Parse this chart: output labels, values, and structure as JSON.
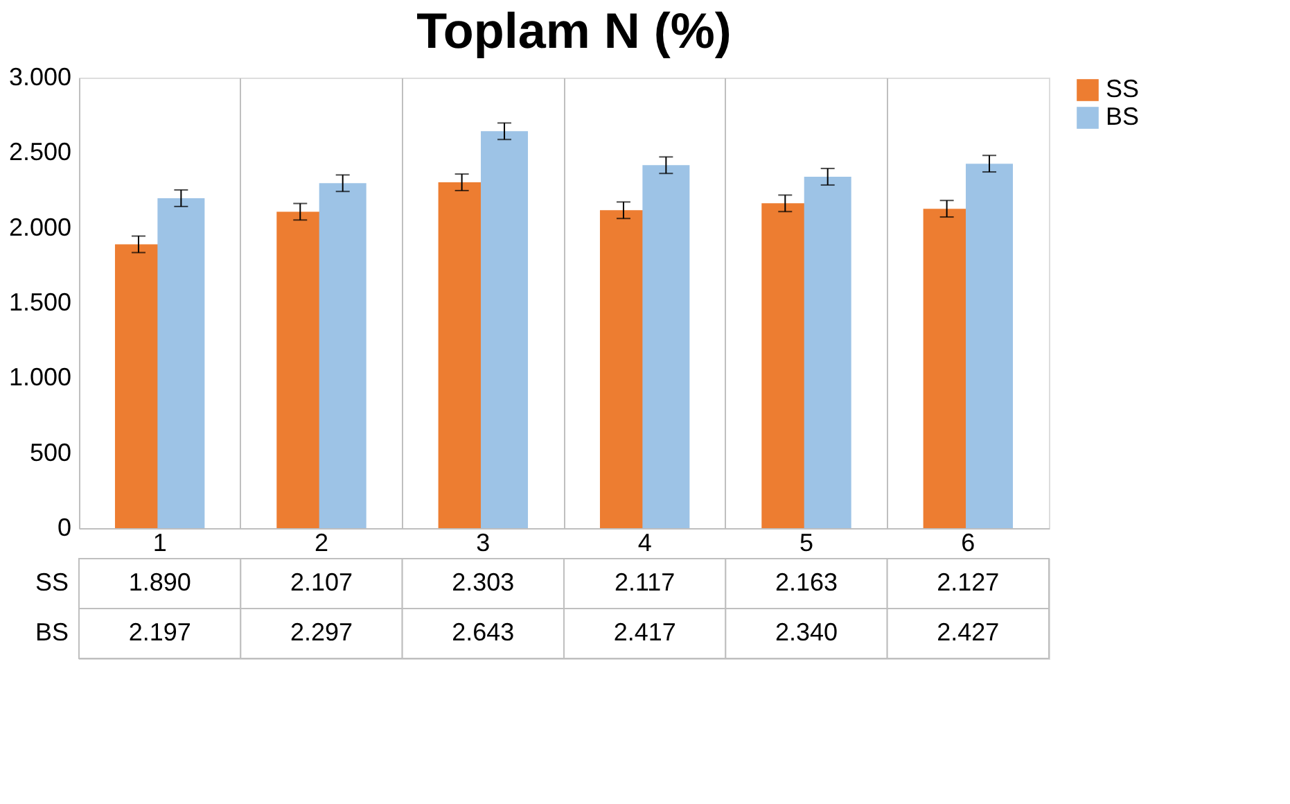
{
  "chart_data": {
    "type": "bar",
    "title": "Toplam N (%)",
    "categories": [
      "1",
      "2",
      "3",
      "4",
      "5",
      "6"
    ],
    "series": [
      {
        "name": "SS",
        "color": "#ed7d31",
        "values": [
          1890,
          2107,
          2303,
          2117,
          2163,
          2127
        ],
        "value_labels": [
          "1.890",
          "2.107",
          "2.303",
          "2.117",
          "2.163",
          "2.127"
        ],
        "errors": [
          55,
          55,
          55,
          55,
          55,
          55
        ]
      },
      {
        "name": "BS",
        "color": "#9dc3e6",
        "values": [
          2197,
          2297,
          2643,
          2417,
          2340,
          2427
        ],
        "value_labels": [
          "2.197",
          "2.297",
          "2.643",
          "2.417",
          "2.340",
          "2.427"
        ],
        "errors": [
          55,
          55,
          55,
          55,
          55,
          55
        ]
      }
    ],
    "ylim": [
      0,
      3000
    ],
    "yticks": [
      0,
      500,
      {
        "value": 1000,
        "label": "1.000"
      },
      {
        "value": 1500,
        "label": "1.500"
      },
      {
        "value": 2000,
        "label": "2.000"
      },
      {
        "value": 2500,
        "label": "2.500"
      },
      {
        "value": 3000,
        "label": "3.000"
      }
    ],
    "grid": false,
    "legend": "right"
  }
}
